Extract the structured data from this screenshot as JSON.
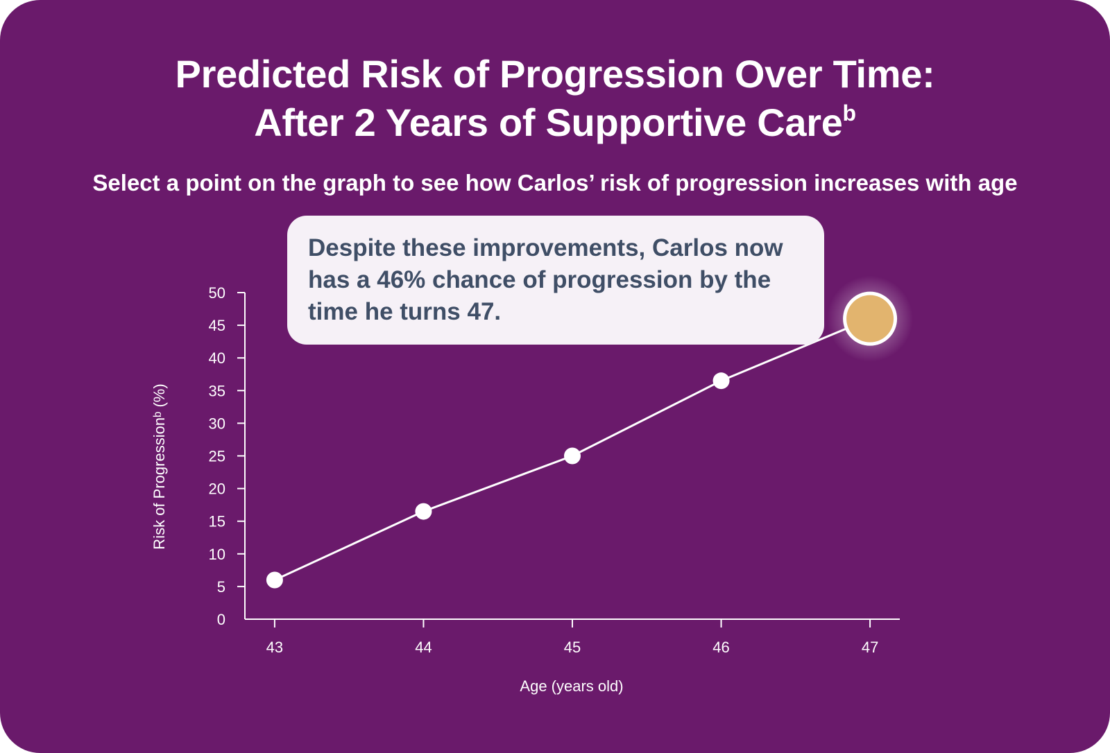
{
  "title": {
    "line1": "Predicted Risk of Progression Over Time:",
    "line2": "After 2 Years of Supportive Care",
    "line2_superscript": "b"
  },
  "subtitle": "Select a point on the graph to see how Carlos’ risk of progression increases with age",
  "callout": {
    "text": "Despite these improvements, Carlos now has a 46% chance of progression by the time he turns 47."
  },
  "colors": {
    "background": "#6a1a6b",
    "line": "#ffffff",
    "point": "#ffffff",
    "selected_point": "#e2b46e",
    "callout_background": "#f6f1f7",
    "callout_text": "#3f4e66"
  },
  "chart_data": {
    "type": "line",
    "title": "",
    "xlabel": "Age (years old)",
    "ylabel": "Risk of Progressionᵇ (%)",
    "x": [
      43,
      44,
      45,
      46,
      47
    ],
    "x_tick_labels": [
      "43",
      "44",
      "45",
      "46",
      "47"
    ],
    "y_ticks": [
      0,
      5,
      10,
      15,
      20,
      25,
      30,
      35,
      40,
      45,
      50
    ],
    "y_tick_labels": [
      "0",
      "5",
      "10",
      "15",
      "20",
      "25",
      "30",
      "35",
      "40",
      "45",
      "50"
    ],
    "ylim": [
      0,
      50
    ],
    "xlim": [
      42.8,
      47.2
    ],
    "series": [
      {
        "values": [
          6,
          16.5,
          25,
          36.5,
          46
        ]
      }
    ],
    "selected_index": 4,
    "grid": false,
    "legend": "none"
  }
}
